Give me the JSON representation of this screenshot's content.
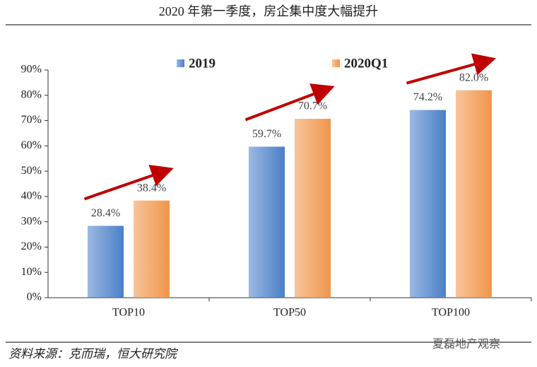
{
  "chart_data": {
    "type": "bar",
    "title": "2020 年第一季度，房企集中度大幅提升",
    "categories": [
      "TOP10",
      "TOP50",
      "TOP100"
    ],
    "series": [
      {
        "name": "2019",
        "color": "#4a7fc8",
        "values": [
          28.4,
          59.7,
          74.2
        ],
        "value_labels": [
          "28.4%",
          "59.7%",
          "74.2%"
        ]
      },
      {
        "name": "2020Q1",
        "color": "#f0954a",
        "values": [
          38.4,
          70.7,
          82.0
        ],
        "value_labels": [
          "38.4%",
          "70.7%",
          "82.0%"
        ]
      }
    ],
    "ylim": [
      0,
      90
    ],
    "yticks": [
      {
        "value": 0,
        "label": "0%"
      },
      {
        "value": 10,
        "label": "10%"
      },
      {
        "value": 20,
        "label": "20%"
      },
      {
        "value": 30,
        "label": "30%"
      },
      {
        "value": 40,
        "label": "40%"
      },
      {
        "value": 50,
        "label": "50%"
      },
      {
        "value": 60,
        "label": "60%"
      },
      {
        "value": 70,
        "label": "70%"
      },
      {
        "value": 80,
        "label": "80%"
      },
      {
        "value": 90,
        "label": "90%"
      }
    ],
    "legend": "top",
    "source": "资料来源：克而瑞，恒大研究院",
    "watermark": "夏磊地产观察"
  }
}
